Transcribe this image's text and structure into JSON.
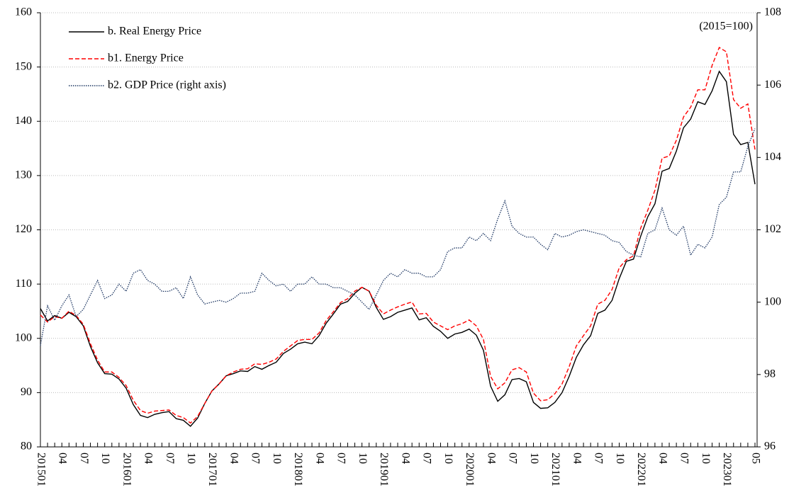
{
  "chart_data": {
    "type": "line",
    "annotation": "(2015=100)",
    "categories": [
      "201501",
      null,
      null,
      "04",
      null,
      null,
      "07",
      null,
      null,
      "10",
      null,
      null,
      "201601",
      null,
      null,
      "04",
      null,
      null,
      "07",
      null,
      null,
      "10",
      null,
      null,
      "201701",
      null,
      null,
      "04",
      null,
      null,
      "07",
      null,
      null,
      "10",
      null,
      null,
      "201801",
      null,
      null,
      "04",
      null,
      null,
      "07",
      null,
      null,
      "10",
      null,
      null,
      "201901",
      null,
      null,
      "04",
      null,
      null,
      "07",
      null,
      null,
      "10",
      null,
      null,
      "202001",
      null,
      null,
      "04",
      null,
      null,
      "07",
      null,
      null,
      "10",
      null,
      null,
      "202101",
      null,
      null,
      "04",
      null,
      null,
      "07",
      null,
      null,
      "10",
      null,
      null,
      "202201",
      null,
      null,
      "04",
      null,
      null,
      "07",
      null,
      null,
      "10",
      null,
      null,
      "202301",
      null,
      null,
      null,
      "05"
    ],
    "series": [
      {
        "name": "b. Real Energy Price",
        "color": "#000000",
        "dash": "solid",
        "axis": "y",
        "values": [
          105.5,
          103.2,
          104.2,
          103.7,
          104.8,
          104.0,
          102.3,
          98.5,
          95.5,
          93.5,
          93.4,
          92.5,
          90.8,
          87.8,
          85.8,
          85.4,
          86.0,
          86.3,
          86.5,
          85.2,
          84.9,
          83.8,
          85.3,
          88.0,
          90.3,
          91.6,
          93.1,
          93.5,
          94.0,
          93.9,
          94.8,
          94.3,
          95.0,
          95.6,
          97.2,
          98.0,
          99.0,
          99.3,
          99.0,
          100.5,
          102.8,
          104.5,
          106.3,
          106.8,
          108.3,
          109.4,
          108.7,
          105.7,
          103.5,
          104.0,
          104.8,
          105.2,
          105.6,
          103.4,
          103.8,
          102.2,
          101.3,
          100.0,
          100.8,
          101.1,
          101.7,
          100.6,
          97.8,
          91.2,
          88.4,
          89.6,
          92.4,
          92.6,
          92.0,
          88.2,
          87.1,
          87.2,
          88.2,
          90.0,
          93.0,
          96.5,
          98.8,
          100.5,
          104.6,
          105.2,
          107.0,
          111.0,
          114.2,
          114.6,
          118.8,
          122.4,
          124.8,
          130.8,
          131.3,
          134.5,
          138.8,
          140.4,
          143.6,
          143.1,
          145.6,
          149.2,
          147.3,
          137.6,
          135.7,
          136.1,
          128.4
        ]
      },
      {
        "name": "b1. Energy Price",
        "color": "#ff0000",
        "dash": "dashed",
        "axis": "y",
        "values": [
          104.3,
          103.0,
          104.0,
          103.7,
          105.0,
          104.2,
          102.6,
          99.0,
          96.0,
          93.8,
          93.8,
          92.8,
          91.3,
          88.6,
          86.7,
          86.2,
          86.6,
          86.7,
          86.8,
          85.8,
          85.4,
          84.4,
          85.6,
          88.0,
          90.3,
          91.6,
          93.1,
          93.8,
          94.3,
          94.4,
          95.3,
          95.2,
          95.6,
          96.2,
          97.6,
          98.6,
          99.6,
          99.8,
          99.8,
          101.0,
          103.3,
          104.9,
          106.6,
          107.3,
          108.7,
          109.4,
          108.7,
          106.1,
          104.5,
          105.2,
          105.8,
          106.3,
          106.7,
          104.5,
          104.6,
          103.0,
          102.3,
          101.6,
          102.3,
          102.7,
          103.4,
          102.3,
          99.8,
          93.0,
          90.7,
          91.8,
          94.2,
          94.6,
          93.8,
          89.9,
          88.5,
          88.7,
          89.8,
          91.6,
          94.8,
          98.6,
          100.5,
          102.3,
          106.3,
          107.0,
          109.0,
          113.0,
          114.5,
          115.2,
          120.3,
          123.6,
          127.3,
          133.2,
          133.6,
          136.5,
          140.8,
          142.6,
          145.8,
          145.8,
          150.3,
          153.6,
          152.8,
          144.0,
          142.4,
          143.2,
          134.8
        ]
      },
      {
        "name": "b2. GDP Price (right axis)",
        "color": "#1f3864",
        "dash": "dotted",
        "axis": "y2",
        "values": [
          98.8,
          99.9,
          99.5,
          99.9,
          100.2,
          99.6,
          99.8,
          100.2,
          100.6,
          100.1,
          100.2,
          100.5,
          100.3,
          100.8,
          100.9,
          100.6,
          100.5,
          100.3,
          100.3,
          100.4,
          100.1,
          100.7,
          100.2,
          99.95,
          100.0,
          100.05,
          100.0,
          100.1,
          100.25,
          100.25,
          100.3,
          100.8,
          100.6,
          100.45,
          100.5,
          100.3,
          100.5,
          100.5,
          100.7,
          100.5,
          100.5,
          100.4,
          100.4,
          100.3,
          100.2,
          100.0,
          99.8,
          100.2,
          100.6,
          100.8,
          100.7,
          100.9,
          100.8,
          100.8,
          100.7,
          100.7,
          100.9,
          101.4,
          101.5,
          101.5,
          101.8,
          101.7,
          101.9,
          101.7,
          102.3,
          102.8,
          102.1,
          101.9,
          101.8,
          101.8,
          101.6,
          101.45,
          101.9,
          101.8,
          101.85,
          101.95,
          102.0,
          101.95,
          101.9,
          101.85,
          101.7,
          101.65,
          101.4,
          101.3,
          101.25,
          101.9,
          102.0,
          102.6,
          102.0,
          101.85,
          102.1,
          101.3,
          101.6,
          101.5,
          101.8,
          102.7,
          102.9,
          103.6,
          103.6,
          104.3,
          104.8
        ]
      }
    ],
    "ylim": [
      80,
      160
    ],
    "yticks": [
      80,
      90,
      100,
      110,
      120,
      130,
      140,
      150,
      160
    ],
    "y2lim": [
      96,
      108
    ],
    "y2ticks": [
      96,
      98,
      100,
      102,
      104,
      106,
      108
    ],
    "grid": true,
    "legend": "top-left"
  }
}
